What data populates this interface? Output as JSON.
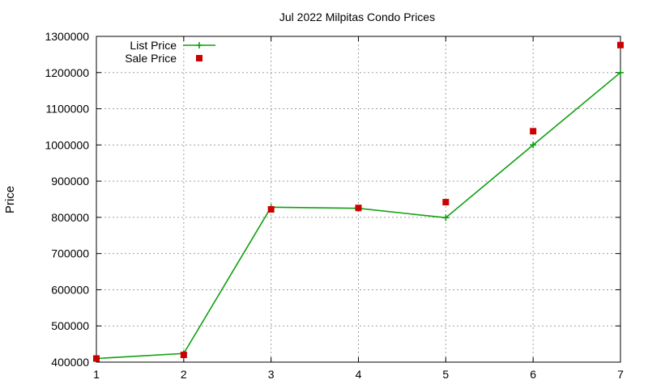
{
  "chart_data": {
    "type": "line",
    "title": "Jul 2022 Milpitas Condo Prices",
    "xlabel": "",
    "ylabel": "Price",
    "x": [
      1,
      2,
      3,
      4,
      5,
      6,
      7
    ],
    "xlim": [
      1,
      7
    ],
    "ylim": [
      400000,
      1300000
    ],
    "xticks": [
      "1",
      "2",
      "3",
      "4",
      "5",
      "6",
      "7"
    ],
    "yticks": [
      "400000",
      "500000",
      "600000",
      "700000",
      "800000",
      "900000",
      "1000000",
      "1100000",
      "1200000",
      "1300000"
    ],
    "grid": true,
    "legend_position": "top-left",
    "series": [
      {
        "name": "List Price",
        "style": "line-with-plus-markers",
        "color": "#10a010",
        "values": [
          410000,
          424000,
          828000,
          825000,
          799000,
          1000000,
          1200000
        ]
      },
      {
        "name": "Sale Price",
        "style": "square-markers",
        "color": "#cc0000",
        "values": [
          410000,
          420000,
          822000,
          826000,
          842000,
          1038000,
          1276000
        ]
      }
    ]
  }
}
